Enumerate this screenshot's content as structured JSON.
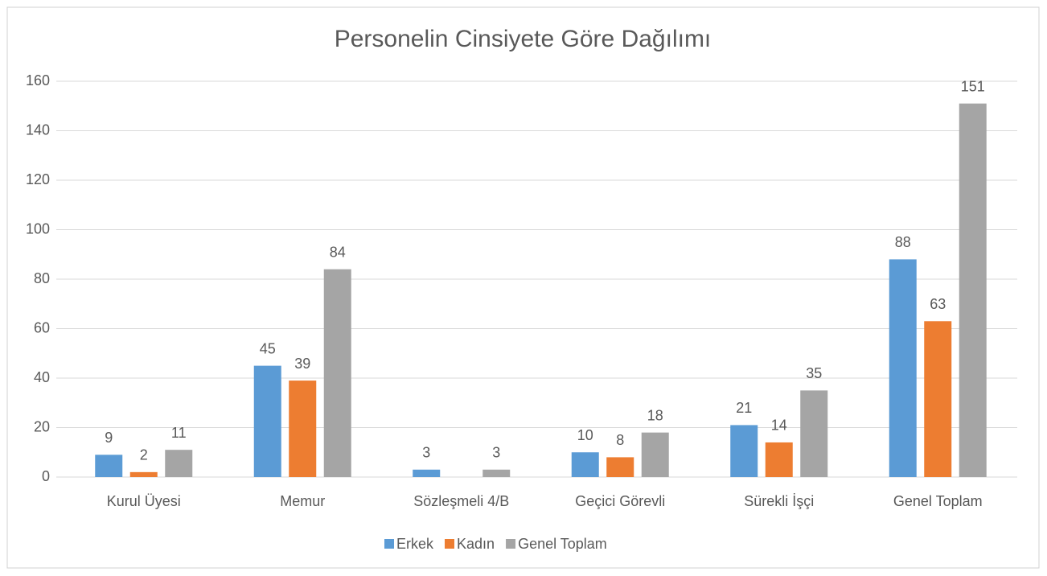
{
  "chart_data": {
    "type": "bar",
    "title": "Personelin Cinsiyete Göre Dağılımı",
    "categories": [
      "Kurul Üyesi",
      "Memur",
      "Sözleşmeli 4/B",
      "Geçici Görevli",
      "Sürekli İşçi",
      "Genel Toplam"
    ],
    "series": [
      {
        "name": "Erkek",
        "color": "#5b9bd5",
        "values": [
          9,
          45,
          3,
          10,
          21,
          88
        ]
      },
      {
        "name": "Kadın",
        "color": "#ed7d31",
        "values": [
          2,
          39,
          null,
          8,
          14,
          63
        ]
      },
      {
        "name": "Genel Toplam",
        "color": "#a5a5a5",
        "values": [
          11,
          84,
          3,
          18,
          35,
          151
        ]
      }
    ],
    "ylim": [
      0,
      160
    ],
    "yticks": [
      0,
      20,
      40,
      60,
      80,
      100,
      120,
      140,
      160
    ],
    "grid": true,
    "legend": "bottom"
  }
}
